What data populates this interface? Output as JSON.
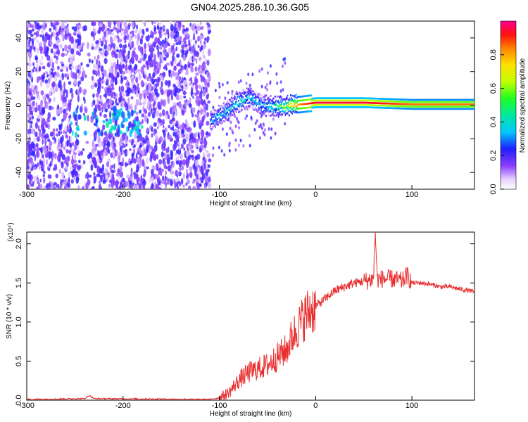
{
  "title": "GN04.2025.286.10.36.G05",
  "chart_data": [
    {
      "type": "heatmap",
      "xlabel": "Height of straight line (km)",
      "ylabel": "Frequency (Hz)",
      "xlim": [
        -300,
        165
      ],
      "ylim": [
        -50,
        50
      ],
      "xticks": [
        "-300",
        "-200",
        "-100",
        "0",
        "100"
      ],
      "yticks": [
        "-40",
        "-20",
        "0",
        "20",
        "40"
      ],
      "colorbar": {
        "label": "Normalized spectral amplitude",
        "range": [
          0,
          1
        ],
        "ticks": [
          "0.0",
          "0.2",
          "0.4",
          "0.6",
          "0.8"
        ]
      },
      "ridge": {
        "description_points_x": [
          -110,
          -95,
          -80,
          -70,
          -55,
          -40,
          -25,
          -15,
          0,
          50,
          100,
          165
        ],
        "frequency": [
          -10,
          -4,
          2,
          5,
          0,
          -1,
          0,
          0.5,
          1.5,
          1.5,
          0.5,
          0.5
        ],
        "amplitude": [
          0.3,
          0.35,
          0.4,
          0.35,
          0.35,
          0.45,
          0.7,
          0.85,
          0.95,
          0.95,
          0.85,
          0.85
        ]
      },
      "grid": false
    },
    {
      "type": "line",
      "xlabel": "Height of straight line (km)",
      "ylabel": "SNR (10 * v/v)",
      "y_multiplier": "(x10⁴)",
      "xlim": [
        -300,
        165
      ],
      "ylim": [
        0,
        2.15
      ],
      "xticks": [
        "-300",
        "-200",
        "-100",
        "0",
        "100"
      ],
      "yticks": [
        "0.0",
        "0.5",
        "1.0",
        "1.5",
        "2.0"
      ],
      "series": [
        {
          "color": "#e83030",
          "x": [
            -300,
            -240,
            -235,
            -230,
            -110,
            -100,
            -90,
            -80,
            -70,
            -60,
            -50,
            -40,
            -30,
            -25,
            -20,
            -15,
            -10,
            -5,
            0,
            10,
            20,
            30,
            40,
            50,
            60,
            62,
            64,
            70,
            80,
            90,
            95,
            100,
            110,
            120,
            130,
            140,
            150,
            160,
            165
          ],
          "y": [
            0.01,
            0.02,
            0.06,
            0.02,
            0.01,
            0.03,
            0.1,
            0.25,
            0.35,
            0.4,
            0.45,
            0.55,
            0.65,
            0.8,
            0.9,
            1.0,
            1.1,
            1.15,
            1.2,
            1.3,
            1.4,
            1.45,
            1.5,
            1.52,
            1.55,
            2.15,
            1.55,
            1.55,
            1.55,
            1.52,
            1.6,
            1.5,
            1.5,
            1.48,
            1.45,
            1.45,
            1.42,
            1.4,
            1.38
          ]
        }
      ],
      "grid": false
    }
  ],
  "colors": {
    "signal": "#e83030"
  }
}
